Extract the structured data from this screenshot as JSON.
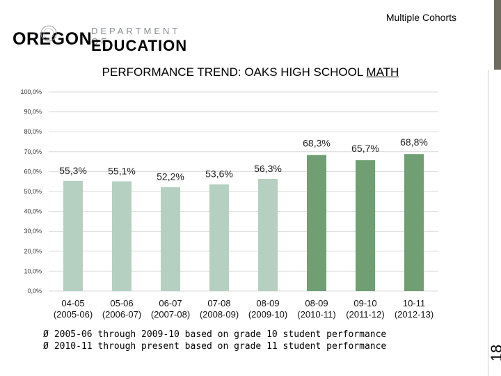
{
  "header": {
    "subtitle": "Multiple Cohorts",
    "logo": {
      "state": "OREGON",
      "dept": "DEPARTMENT OF",
      "edu": "EDUCATION"
    }
  },
  "title": {
    "main": "PERFORMANCE TREND: OAKS HIGH SCHOOL ",
    "underlined": "MATH"
  },
  "chart_data": {
    "type": "bar",
    "title": "PERFORMANCE TREND: OAKS HIGH SCHOOL MATH",
    "categories": [
      {
        "line1": "04-05",
        "line2": "(2005-06)"
      },
      {
        "line1": "05-06",
        "line2": "(2006-07)"
      },
      {
        "line1": "06-07",
        "line2": "(2007-08)"
      },
      {
        "line1": "07-08",
        "line2": "(2008-09)"
      },
      {
        "line1": "08-09",
        "line2": "(2009-10)"
      },
      {
        "line1": "08-09",
        "line2": "(2010-11)"
      },
      {
        "line1": "09-10",
        "line2": "(2011-12)"
      },
      {
        "line1": "10-11",
        "line2": "(2012-13)"
      }
    ],
    "values": [
      55.3,
      55.1,
      52.2,
      53.6,
      56.3,
      68.3,
      65.7,
      68.8
    ],
    "value_labels": [
      "55,3%",
      "55,1%",
      "52,2%",
      "53,6%",
      "56,3%",
      "68,3%",
      "65,7%",
      "68,8%"
    ],
    "y_ticks": [
      "0,0%",
      "10,0%",
      "20,0%",
      "30,0%",
      "40,0%",
      "50,0%",
      "60,0%",
      "70,0%",
      "80,0%",
      "90,0%",
      "100,0%"
    ],
    "ylim": [
      0,
      100
    ],
    "grid": true,
    "grade10_color": "#b5d0c0",
    "grade11_color": "#6f9f72",
    "grade10_count": 5
  },
  "notes": {
    "arrow": "Ø",
    "items": [
      "2005-06 through 2009-10 based on grade 10 student performance",
      "2010-11 through present based on grade 11 student performance"
    ]
  },
  "slide_number": "18",
  "colors": {
    "accent_bar": "#6e6c5f"
  }
}
